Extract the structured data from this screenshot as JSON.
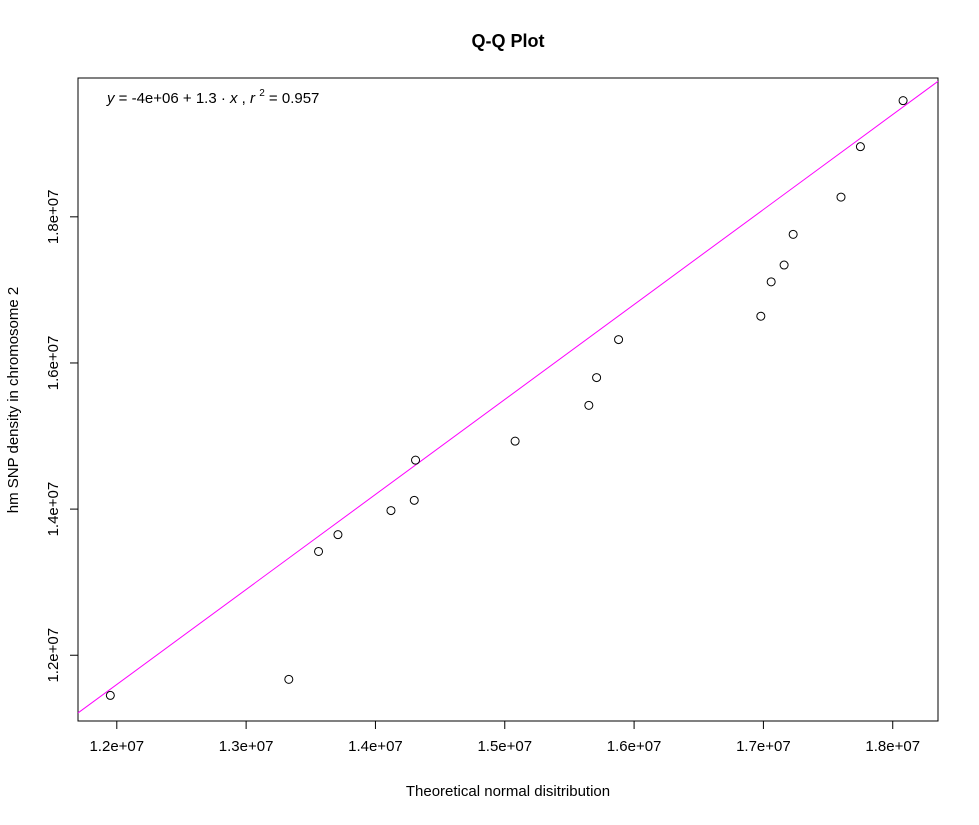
{
  "chart_data": {
    "type": "scatter",
    "title": "Q-Q Plot",
    "xlabel": "Theoretical normal disitribution",
    "ylabel": "hm SNP density in chromosome 2",
    "xlim": [
      11700000,
      18350000
    ],
    "ylim": [
      11100000,
      19900000
    ],
    "x_ticks": [
      12000000,
      13000000,
      14000000,
      15000000,
      16000000,
      17000000,
      18000000
    ],
    "x_tick_labels": [
      "1.2e+07",
      "1.3e+07",
      "1.4e+07",
      "1.5e+07",
      "1.6e+07",
      "1.7e+07",
      "1.8e+07"
    ],
    "y_ticks": [
      12000000,
      14000000,
      16000000,
      18000000
    ],
    "y_tick_labels": [
      "1.2e+07",
      "1.4e+07",
      "1.6e+07",
      "1.8e+07"
    ],
    "points": [
      {
        "x": 11950000,
        "y": 11450000
      },
      {
        "x": 13330000,
        "y": 11670000
      },
      {
        "x": 13560000,
        "y": 13420000
      },
      {
        "x": 13710000,
        "y": 13650000
      },
      {
        "x": 14120000,
        "y": 13980000
      },
      {
        "x": 14300000,
        "y": 14120000
      },
      {
        "x": 14310000,
        "y": 14670000
      },
      {
        "x": 15080000,
        "y": 14930000
      },
      {
        "x": 15650000,
        "y": 15420000
      },
      {
        "x": 15710000,
        "y": 15800000
      },
      {
        "x": 15880000,
        "y": 16320000
      },
      {
        "x": 16980000,
        "y": 16640000
      },
      {
        "x": 17060000,
        "y": 17110000
      },
      {
        "x": 17160000,
        "y": 17340000
      },
      {
        "x": 17230000,
        "y": 17760000
      },
      {
        "x": 17600000,
        "y": 18270000
      },
      {
        "x": 17750000,
        "y": 18960000
      },
      {
        "x": 18080000,
        "y": 19590000
      }
    ],
    "fit_line": {
      "intercept": -4000000,
      "slope": 1.3,
      "color": "#ff00ff"
    },
    "annotation": {
      "y": "y",
      "eq": " = -4e+06 + 1.3 · ",
      "x": "x",
      "sep": ",  ",
      "r": "r",
      "r_sup": "2",
      "r_val": " = 0.957"
    },
    "grid": false,
    "legend": "none"
  }
}
